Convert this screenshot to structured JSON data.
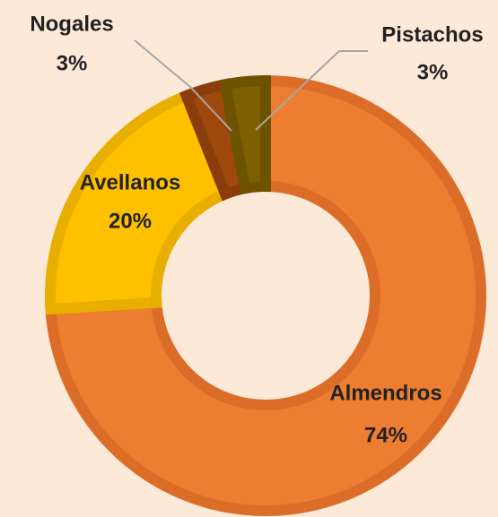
{
  "chart_data": {
    "type": "donut",
    "categories": [
      "Almendros",
      "Avellanos",
      "Nogales",
      "Pistachos"
    ],
    "values": [
      74,
      20,
      3,
      3
    ],
    "value_labels": [
      "74%",
      "20%",
      "3%",
      "3%"
    ],
    "colors": [
      "#ed7d31",
      "#ffc000",
      "#9e480e",
      "#7f6000"
    ],
    "border_colors": [
      "#dc6d28",
      "#e8ae00",
      "#8a3c0a",
      "#6d5200"
    ]
  }
}
